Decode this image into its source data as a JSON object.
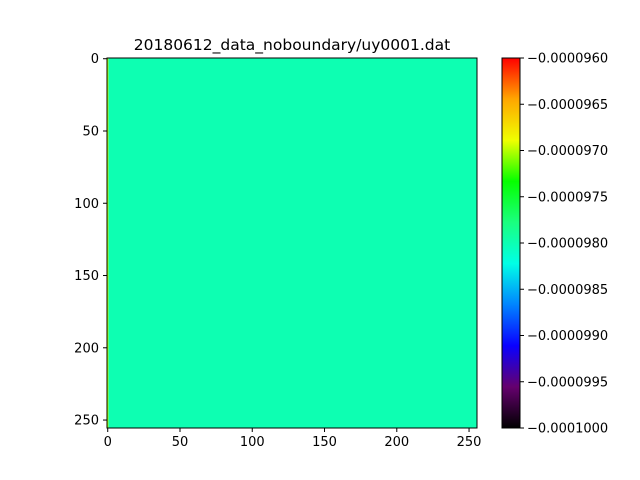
{
  "chart_data": {
    "type": "heatmap",
    "title": "20180612_data_noboundary/uy0001.dat",
    "xlabel": "",
    "ylabel": "",
    "grid": false,
    "xlim": [
      -0.5,
      255.5
    ],
    "ylim": [
      255.5,
      -0.5
    ],
    "x_ticks": [
      0,
      50,
      100,
      150,
      200,
      250
    ],
    "y_ticks": [
      0,
      50,
      100,
      150,
      200,
      250
    ],
    "x_tick_labels": [
      "0",
      "50",
      "100",
      "150",
      "200",
      "250"
    ],
    "y_tick_labels": [
      "0",
      "50",
      "100",
      "150",
      "200",
      "250"
    ],
    "grid_shape": [
      256,
      256
    ],
    "fields": [
      {
        "columns": [
          0,
          0
        ],
        "rows": [
          0,
          255
        ],
        "value": -9.7e-05
      },
      {
        "columns": [
          1,
          255
        ],
        "rows": [
          0,
          255
        ],
        "value": -9.8e-05
      }
    ],
    "colorbar": {
      "colormap": "gist_rainbow",
      "range": [
        -0.0001,
        -9.6e-05
      ],
      "ticks": [
        -0.0001,
        -9.95e-05,
        -9.9e-05,
        -9.85e-05,
        -9.8e-05,
        -9.75e-05,
        -9.7e-05,
        -9.65e-05,
        -9.6e-05
      ],
      "tick_labels": [
        "−0.0001000",
        "−0.0000995",
        "−0.0000990",
        "−0.0000985",
        "−0.0000980",
        "−0.0000975",
        "−0.0000970",
        "−0.0000965",
        "−0.0000960"
      ],
      "colors": [
        "#000000",
        "#65006e",
        "#0a00ff",
        "#0084ff",
        "#00ffe6",
        "#1aff7f",
        "#06ff00",
        "#f0ff00",
        "#ffa600",
        "#ff0000"
      ]
    }
  }
}
